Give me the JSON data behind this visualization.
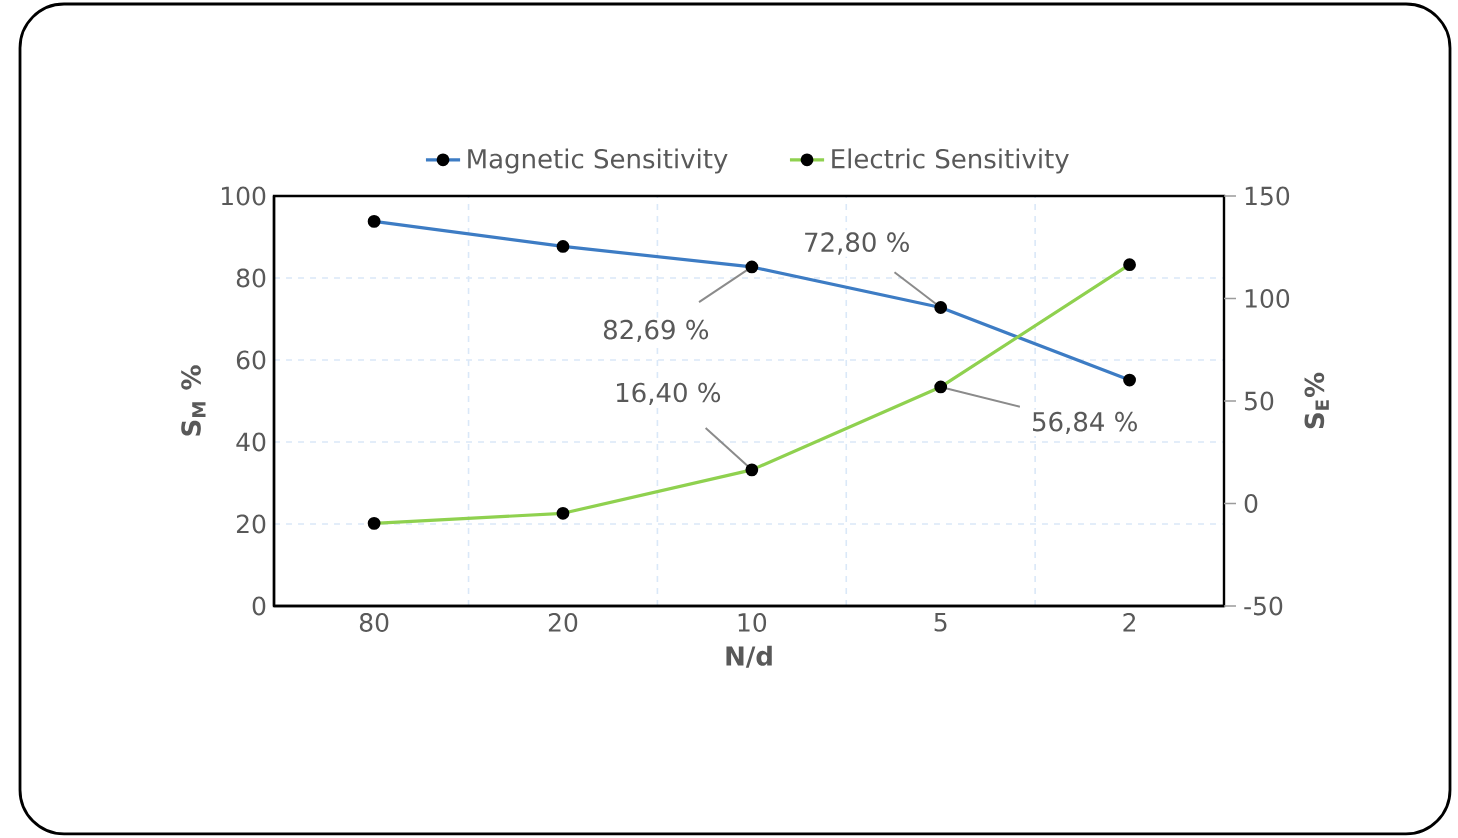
{
  "chart_data": {
    "type": "line",
    "xlabel": "N/d",
    "ylabel": "S$_{M}$ %",
    "y2label": "S$_{E}$%",
    "categories": [
      "80",
      "20",
      "10",
      "5",
      "2"
    ],
    "series": [
      {
        "name": "Magnetic Sensitivity",
        "color": "#3d7cc4",
        "values": [
          93.8,
          87.7,
          82.69,
          72.8,
          55.1
        ],
        "value_labels": [
          null,
          null,
          "82,69 %",
          "72,80 %",
          null
        ]
      },
      {
        "name": "Electric Sensitivity",
        "color": "#8fd14f",
        "axis": "y2",
        "values": [
          -9.7,
          -4.8,
          16.4,
          56.84,
          116.5
        ],
        "value_labels": [
          null,
          null,
          "16,40 %",
          "56,84 %",
          null
        ]
      }
    ],
    "ylim": [
      0,
      100
    ],
    "yticks": [
      0,
      20,
      40,
      60,
      80,
      100
    ],
    "y2lim": [
      -50,
      150
    ],
    "y2ticks": [
      -50,
      0,
      50,
      100,
      150
    ],
    "grid": true,
    "legend": "top",
    "marker": "circle",
    "line_style": "solid"
  }
}
